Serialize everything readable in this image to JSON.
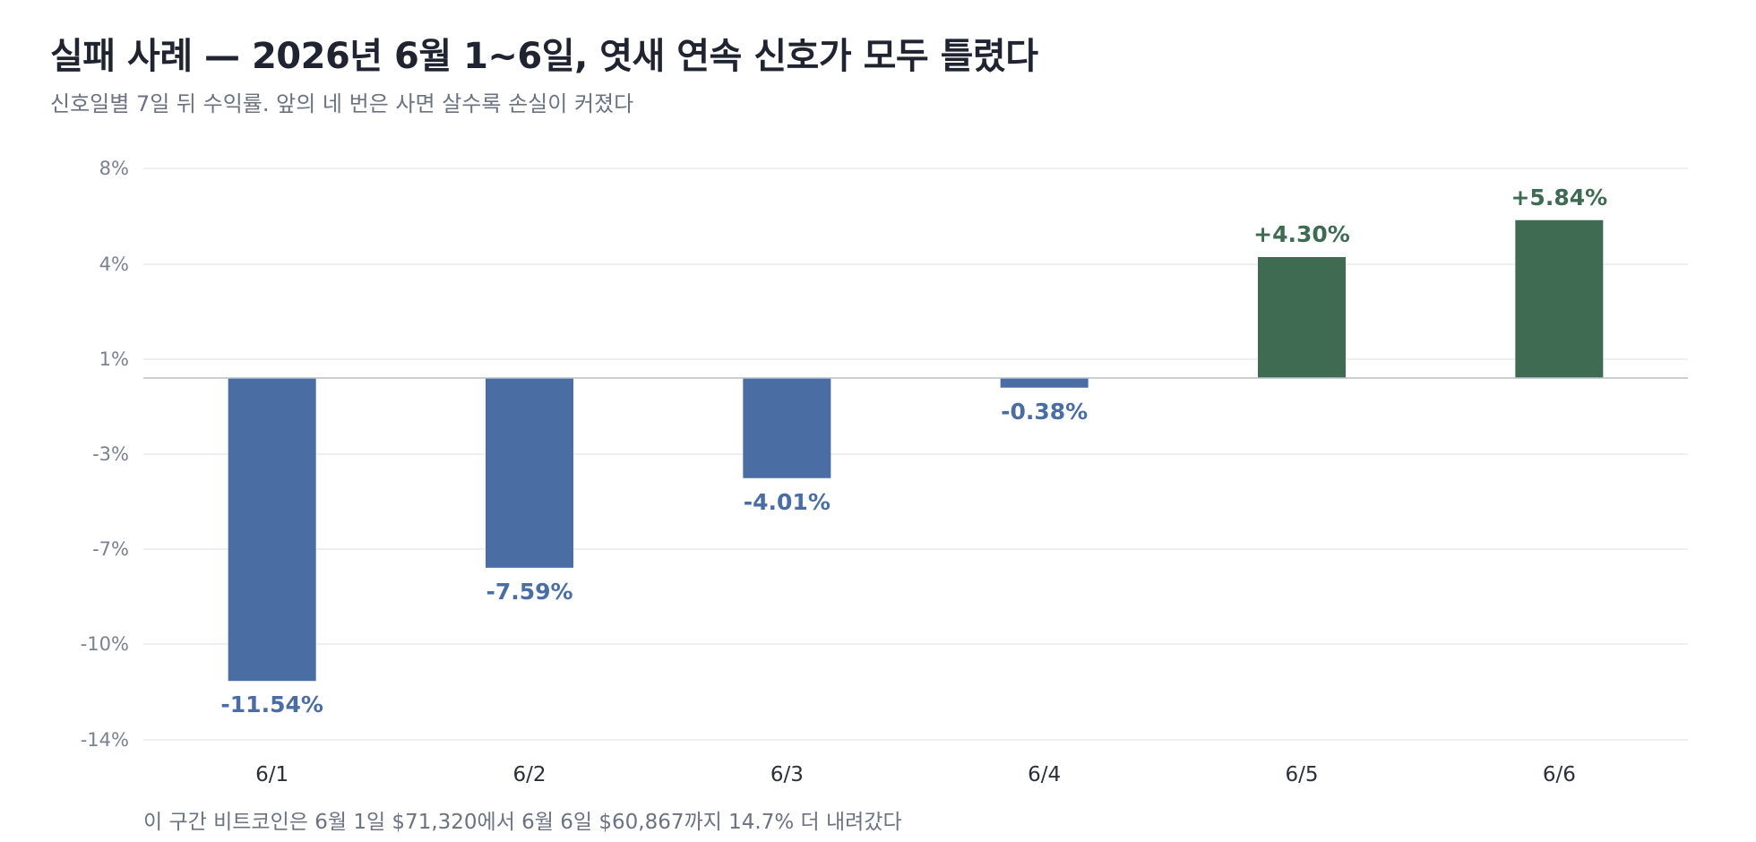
{
  "header": {
    "title": "실패 사례 — 2026년 6월 1~6일, 엿새 연속 신호가 모두 틀렸다",
    "subtitle": "신호일별 7일 뒤 수익률. 앞의 네 번은 사면 살수록 손실이 커졌다"
  },
  "footer": {
    "note": "이 구간 비트코인은 6월 1일 $71,320에서 6월 6일 $60,867까지 14.7% 더 내려갔다"
  },
  "colors": {
    "negative": "#4a6ea3",
    "positive": "#3f6b52",
    "grid": "#e3e6ea",
    "zero_line": "#b8bfc9"
  },
  "chart_data": {
    "type": "bar",
    "title": "실패 사례 — 2026년 6월 1~6일, 엿새 연속 신호가 모두 틀렸다",
    "subtitle": "신호일별 7일 뒤 수익률. 앞의 네 번은 사면 살수록 손실이 커졌다",
    "categories": [
      "6/1",
      "6/2",
      "6/3",
      "6/4",
      "6/5",
      "6/6"
    ],
    "values": [
      -11.54,
      -7.59,
      -4.01,
      -0.38,
      4.3,
      5.84
    ],
    "value_labels": [
      "-11.54%",
      "-7.59%",
      "-4.01%",
      "-0.38%",
      "+4.30%",
      "+5.84%"
    ],
    "yticks": [
      8,
      4,
      1,
      -3,
      -7,
      -10,
      -14
    ],
    "ytick_labels": [
      "8%",
      "4%",
      "1%",
      "-3%",
      "-7%",
      "-10%",
      "-14%"
    ],
    "ylim": [
      -14,
      8
    ],
    "xlabel": "",
    "ylabel": "",
    "grid": true,
    "legend": "none"
  }
}
